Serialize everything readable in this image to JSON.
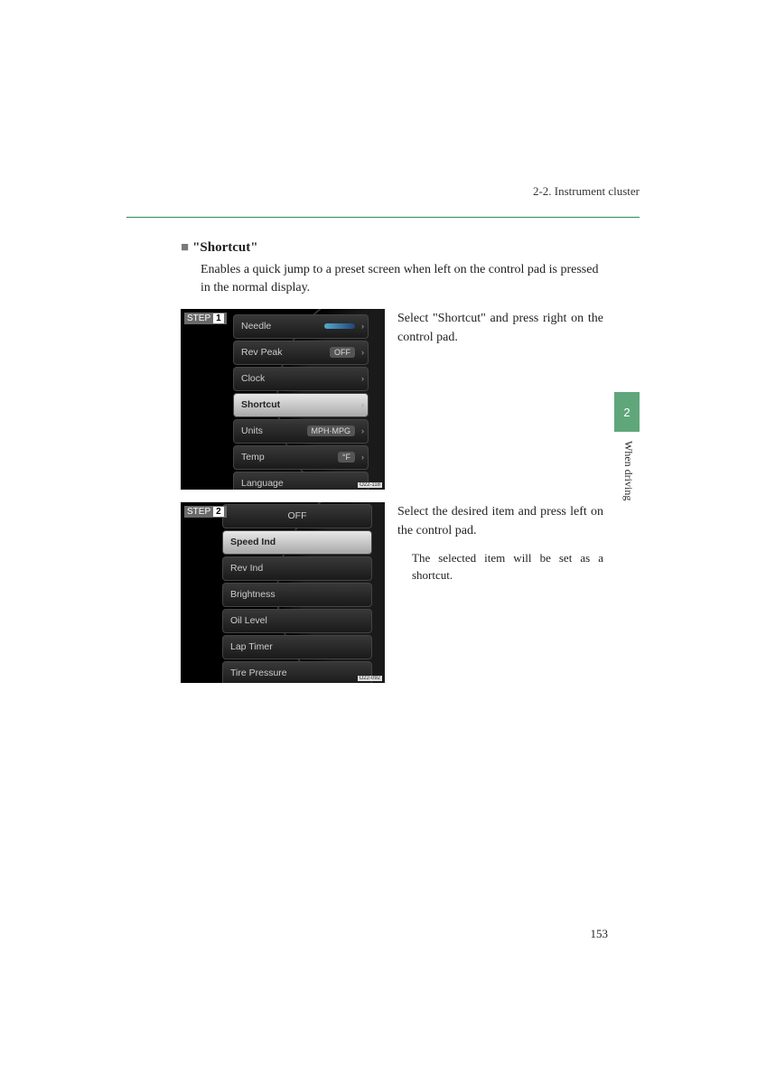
{
  "header": {
    "section": "2-2. Instrument cluster"
  },
  "section": {
    "bullet": "■",
    "title": "\"Shortcut\"",
    "intro": "Enables a quick jump to a preset screen when left on the control pad is pressed in the normal display."
  },
  "steps": [
    {
      "badge_label": "STEP",
      "badge_num": "1",
      "text": "Select \"Shortcut\" and press right on the control pad.",
      "img_code": "O22-118",
      "menu": [
        {
          "label": "Needle",
          "val": "",
          "arrow": "›",
          "sel": false,
          "showbar": true
        },
        {
          "label": "Rev Peak",
          "val": "OFF",
          "arrow": "›",
          "sel": false
        },
        {
          "label": "Clock",
          "val": "",
          "arrow": "›",
          "sel": false
        },
        {
          "label": "Shortcut",
          "val": "",
          "arrow": "›",
          "sel": true
        },
        {
          "label": "Units",
          "val": "MPH·MPG",
          "arrow": "›",
          "sel": false
        },
        {
          "label": "Temp",
          "val": "°F",
          "arrow": "›",
          "sel": false
        },
        {
          "label": "Language",
          "val": "",
          "arrow": "›",
          "sel": false
        }
      ]
    },
    {
      "badge_label": "STEP",
      "badge_num": "2",
      "text": "Select the desired item and press left on the control pad.",
      "subtext": "The selected item will be set as a shortcut.",
      "img_code": "O22-092",
      "menu": [
        {
          "label": "OFF",
          "center": true,
          "sel": false
        },
        {
          "label": "Speed Ind",
          "sel": true
        },
        {
          "label": "Rev Ind",
          "sel": false
        },
        {
          "label": "Brightness",
          "sel": false
        },
        {
          "label": "Oil Level",
          "sel": false
        },
        {
          "label": "Lap Timer",
          "sel": false
        },
        {
          "label": "Tire Pressure",
          "sel": false
        }
      ]
    }
  ],
  "sidetab": {
    "chapter": "2",
    "label": "When driving"
  },
  "page_number": "153",
  "colors": {
    "rule": "#2e8b57",
    "tab": "#5fa77b"
  }
}
